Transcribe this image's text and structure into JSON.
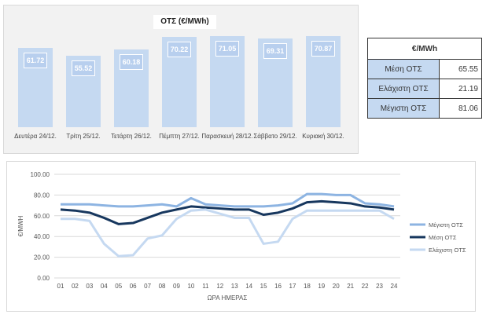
{
  "chart_data": [
    {
      "type": "bar",
      "title": "ΟΤΣ (€/MWh)",
      "categories": [
        "Δευτέρα 24/12.",
        "Τρίτη 25/12.",
        "Τετάρτη 26/12.",
        "Πέμπτη 27/12.",
        "Παρασκευή 28/12.",
        "Σάββατο 29/12.",
        "Κυριακή 30/12."
      ],
      "values": [
        61.72,
        55.52,
        60.18,
        70.22,
        71.05,
        69.31,
        70.87
      ],
      "value_labels": [
        "61.72",
        "55.52",
        "60.18",
        "70.22",
        "71.05",
        "69.31",
        "70.87"
      ],
      "ylim": [
        0,
        80
      ],
      "grid": false,
      "bar_color": "#c5d9f1"
    },
    {
      "type": "table",
      "header": "€/MWh",
      "rows": [
        {
          "name": "Μέση ΟΤΣ",
          "value": "65.55"
        },
        {
          "name": "Ελάχιστη ΟΤΣ",
          "value": "21.19"
        },
        {
          "name": "Μέγιστη ΟΤΣ",
          "value": "81.06"
        }
      ]
    },
    {
      "type": "line",
      "xlabel": "ΩΡΑ ΗΜΕΡΑΣ",
      "ylabel": "€/MWH",
      "x": [
        "01",
        "02",
        "03",
        "04",
        "05",
        "06",
        "07",
        "08",
        "09",
        "10",
        "11",
        "12",
        "13",
        "14",
        "15",
        "16",
        "17",
        "18",
        "19",
        "20",
        "21",
        "22",
        "23",
        "24"
      ],
      "ylim": [
        0,
        100
      ],
      "yticks": [
        "0.00",
        "20.00",
        "40.00",
        "60.00",
        "80.00",
        "100.00"
      ],
      "grid": true,
      "legend_position": "right",
      "series": [
        {
          "name": "Μέγιστη ΟΤΣ",
          "color": "#8db4e2",
          "values": [
            71,
            71,
            71,
            70,
            69,
            69,
            70,
            71,
            69,
            77,
            71,
            70,
            69,
            69,
            69,
            70,
            72,
            81,
            81,
            80,
            80,
            72,
            71,
            69
          ]
        },
        {
          "name": "Μέση ΟΤΣ",
          "color": "#17375e",
          "values": [
            66,
            65,
            63,
            58,
            52,
            53,
            58,
            63,
            66,
            69,
            68,
            67,
            66,
            66,
            61,
            63,
            67,
            73,
            74,
            73,
            72,
            69,
            68,
            66
          ]
        },
        {
          "name": "Ελάχιστη ΟΤΣ",
          "color": "#c5d9f1",
          "values": [
            57,
            57,
            55,
            33,
            21,
            22,
            38,
            41,
            57,
            65,
            66,
            62,
            58,
            58,
            33,
            35,
            57,
            65,
            65,
            65,
            65,
            65,
            65,
            57
          ]
        }
      ]
    }
  ]
}
